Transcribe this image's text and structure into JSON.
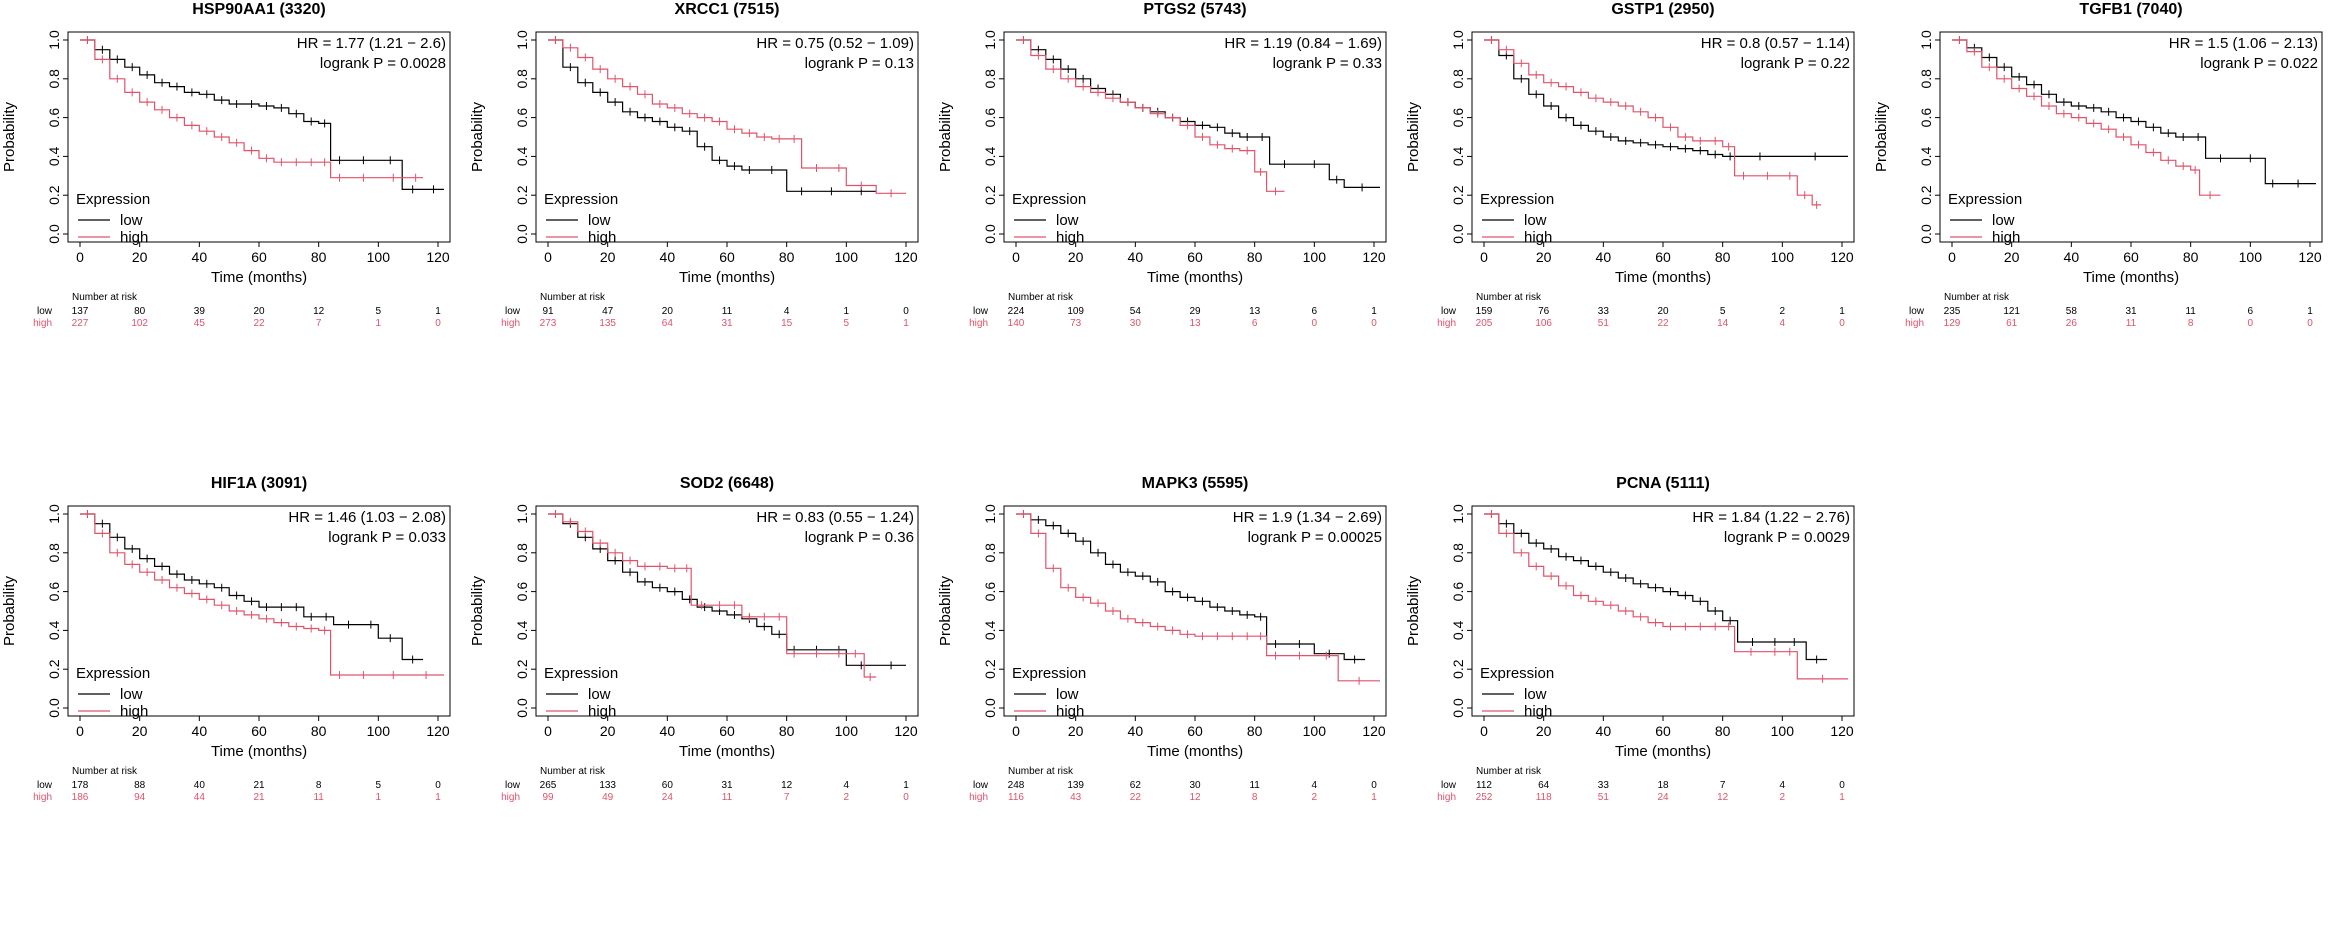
{
  "colors": {
    "low": "#000000",
    "high": "#DF536B",
    "axis": "#000000"
  },
  "shared": {
    "xlabel": "Time (months)",
    "ylabel": "Probability",
    "x_ticks": [
      0,
      20,
      40,
      60,
      80,
      100,
      120
    ],
    "y_ticks": [
      "0.0",
      "0.2",
      "0.4",
      "0.6",
      "0.8",
      "1.0"
    ],
    "legend_title": "Expression",
    "legend_low": "low",
    "legend_high": "high",
    "risk_label": "Number at risk",
    "risk_row_low": "low",
    "risk_row_high": "high",
    "risk_times": [
      0,
      20,
      40,
      60,
      80,
      100,
      120
    ]
  },
  "chart_data": [
    {
      "type": "line",
      "title": "HSP90AA1 (3320)",
      "hr": "HR = 1.77 (1.21 − 2.6)",
      "logrank": "logrank P = 0.0028",
      "xlim": [
        0,
        120
      ],
      "ylim": [
        0,
        1
      ],
      "risk_low": [
        137,
        80,
        39,
        20,
        12,
        5,
        1
      ],
      "risk_high": [
        227,
        102,
        45,
        22,
        7,
        1,
        0
      ],
      "series": [
        {
          "name": "low",
          "x": [
            0,
            5,
            10,
            15,
            20,
            25,
            30,
            35,
            40,
            45,
            50,
            55,
            60,
            65,
            70,
            75,
            80,
            84,
            90,
            100,
            108,
            115,
            122
          ],
          "y": [
            1.0,
            0.95,
            0.9,
            0.86,
            0.82,
            0.78,
            0.76,
            0.73,
            0.72,
            0.69,
            0.67,
            0.67,
            0.66,
            0.65,
            0.62,
            0.58,
            0.57,
            0.38,
            0.38,
            0.38,
            0.23,
            0.23,
            0.23
          ]
        },
        {
          "name": "high",
          "x": [
            0,
            5,
            10,
            15,
            20,
            25,
            30,
            35,
            40,
            45,
            50,
            55,
            60,
            65,
            70,
            75,
            80,
            84,
            90,
            100,
            110,
            115
          ],
          "y": [
            1.0,
            0.9,
            0.8,
            0.73,
            0.68,
            0.64,
            0.6,
            0.56,
            0.53,
            0.5,
            0.47,
            0.43,
            0.39,
            0.37,
            0.37,
            0.37,
            0.37,
            0.29,
            0.29,
            0.29,
            0.29,
            0.29
          ]
        }
      ]
    },
    {
      "type": "line",
      "title": "XRCC1 (7515)",
      "hr": "HR = 0.75 (0.52 − 1.09)",
      "logrank": "logrank P = 0.13",
      "xlim": [
        0,
        120
      ],
      "ylim": [
        0,
        1
      ],
      "risk_low": [
        91,
        47,
        20,
        11,
        4,
        1,
        0
      ],
      "risk_high": [
        273,
        135,
        64,
        31,
        15,
        5,
        1
      ],
      "series": [
        {
          "name": "low",
          "x": [
            0,
            5,
            10,
            15,
            20,
            25,
            30,
            35,
            40,
            45,
            50,
            55,
            60,
            65,
            70,
            80,
            90,
            100,
            110
          ],
          "y": [
            1.0,
            0.86,
            0.78,
            0.73,
            0.68,
            0.63,
            0.6,
            0.58,
            0.55,
            0.53,
            0.45,
            0.38,
            0.35,
            0.33,
            0.33,
            0.22,
            0.22,
            0.22,
            0.22
          ]
        },
        {
          "name": "high",
          "x": [
            0,
            5,
            10,
            15,
            20,
            25,
            30,
            35,
            40,
            45,
            50,
            55,
            60,
            65,
            70,
            75,
            80,
            85,
            95,
            100,
            110,
            120
          ],
          "y": [
            1.0,
            0.96,
            0.91,
            0.85,
            0.8,
            0.76,
            0.72,
            0.67,
            0.65,
            0.62,
            0.6,
            0.58,
            0.54,
            0.52,
            0.5,
            0.49,
            0.49,
            0.34,
            0.34,
            0.25,
            0.21,
            0.21
          ]
        }
      ]
    },
    {
      "type": "line",
      "title": "PTGS2 (5743)",
      "hr": "HR = 1.19 (0.84 − 1.69)",
      "logrank": "logrank P = 0.33",
      "xlim": [
        0,
        120
      ],
      "ylim": [
        0,
        1
      ],
      "risk_low": [
        224,
        109,
        54,
        29,
        13,
        6,
        1
      ],
      "risk_high": [
        140,
        73,
        30,
        13,
        6,
        0,
        0
      ],
      "series": [
        {
          "name": "low",
          "x": [
            0,
            5,
            10,
            15,
            20,
            25,
            30,
            35,
            40,
            45,
            50,
            55,
            60,
            65,
            70,
            75,
            80,
            85,
            95,
            105,
            110,
            122
          ],
          "y": [
            1.0,
            0.95,
            0.9,
            0.85,
            0.8,
            0.75,
            0.72,
            0.68,
            0.65,
            0.63,
            0.6,
            0.58,
            0.56,
            0.55,
            0.52,
            0.5,
            0.5,
            0.36,
            0.36,
            0.28,
            0.24,
            0.24
          ]
        },
        {
          "name": "high",
          "x": [
            0,
            5,
            10,
            15,
            20,
            25,
            30,
            35,
            40,
            45,
            50,
            55,
            60,
            65,
            70,
            75,
            80,
            84,
            90
          ],
          "y": [
            1.0,
            0.92,
            0.85,
            0.8,
            0.76,
            0.73,
            0.7,
            0.68,
            0.65,
            0.62,
            0.6,
            0.56,
            0.5,
            0.46,
            0.44,
            0.43,
            0.32,
            0.22,
            0.22
          ]
        }
      ]
    },
    {
      "type": "line",
      "title": "GSTP1 (2950)",
      "hr": "HR = 0.8 (0.57 − 1.14)",
      "logrank": "logrank P = 0.22",
      "xlim": [
        0,
        120
      ],
      "ylim": [
        0,
        1
      ],
      "risk_low": [
        159,
        76,
        33,
        20,
        5,
        2,
        1
      ],
      "risk_high": [
        205,
        106,
        51,
        22,
        14,
        4,
        0
      ],
      "series": [
        {
          "name": "low",
          "x": [
            0,
            5,
            10,
            15,
            20,
            25,
            30,
            35,
            40,
            45,
            50,
            55,
            60,
            65,
            70,
            75,
            80,
            85,
            100,
            122
          ],
          "y": [
            1.0,
            0.92,
            0.8,
            0.72,
            0.66,
            0.6,
            0.56,
            0.53,
            0.5,
            0.48,
            0.47,
            0.46,
            0.45,
            0.44,
            0.43,
            0.41,
            0.4,
            0.4,
            0.4,
            0.4
          ]
        },
        {
          "name": "high",
          "x": [
            0,
            5,
            10,
            15,
            20,
            25,
            30,
            35,
            40,
            45,
            50,
            55,
            60,
            65,
            70,
            75,
            80,
            84,
            90,
            100,
            105,
            110,
            113
          ],
          "y": [
            1.0,
            0.95,
            0.88,
            0.82,
            0.78,
            0.76,
            0.73,
            0.7,
            0.68,
            0.66,
            0.63,
            0.6,
            0.55,
            0.5,
            0.48,
            0.48,
            0.45,
            0.3,
            0.3,
            0.3,
            0.2,
            0.15,
            0.15
          ]
        }
      ]
    },
    {
      "type": "line",
      "title": "TGFB1 (7040)",
      "hr": "HR = 1.5 (1.06 − 2.13)",
      "logrank": "logrank P = 0.022",
      "xlim": [
        0,
        120
      ],
      "ylim": [
        0,
        1
      ],
      "risk_low": [
        235,
        121,
        58,
        31,
        11,
        6,
        1
      ],
      "risk_high": [
        129,
        61,
        26,
        11,
        8,
        0,
        0
      ],
      "series": [
        {
          "name": "low",
          "x": [
            0,
            5,
            10,
            15,
            20,
            25,
            30,
            35,
            40,
            45,
            50,
            55,
            60,
            65,
            70,
            75,
            80,
            85,
            95,
            105,
            110,
            122
          ],
          "y": [
            1.0,
            0.96,
            0.91,
            0.86,
            0.81,
            0.77,
            0.72,
            0.68,
            0.66,
            0.65,
            0.63,
            0.6,
            0.58,
            0.55,
            0.52,
            0.5,
            0.5,
            0.39,
            0.39,
            0.26,
            0.26,
            0.26
          ]
        },
        {
          "name": "high",
          "x": [
            0,
            5,
            10,
            15,
            20,
            25,
            30,
            35,
            40,
            45,
            50,
            55,
            60,
            65,
            70,
            75,
            80,
            83,
            90
          ],
          "y": [
            1.0,
            0.94,
            0.86,
            0.8,
            0.75,
            0.71,
            0.66,
            0.62,
            0.6,
            0.57,
            0.54,
            0.5,
            0.46,
            0.42,
            0.38,
            0.35,
            0.33,
            0.2,
            0.2
          ]
        }
      ]
    },
    {
      "type": "line",
      "title": "HIF1A (3091)",
      "hr": "HR = 1.46 (1.03 − 2.08)",
      "logrank": "logrank P = 0.033",
      "xlim": [
        0,
        120
      ],
      "ylim": [
        0,
        1
      ],
      "risk_low": [
        178,
        88,
        40,
        21,
        8,
        5,
        0
      ],
      "risk_high": [
        186,
        94,
        44,
        21,
        11,
        1,
        1
      ],
      "series": [
        {
          "name": "low",
          "x": [
            0,
            5,
            10,
            15,
            20,
            25,
            30,
            35,
            40,
            45,
            50,
            55,
            60,
            65,
            70,
            75,
            80,
            85,
            95,
            100,
            108,
            115
          ],
          "y": [
            1.0,
            0.95,
            0.88,
            0.82,
            0.77,
            0.73,
            0.69,
            0.66,
            0.64,
            0.62,
            0.58,
            0.55,
            0.52,
            0.52,
            0.52,
            0.47,
            0.47,
            0.43,
            0.43,
            0.36,
            0.25,
            0.25
          ]
        },
        {
          "name": "high",
          "x": [
            0,
            5,
            10,
            15,
            20,
            25,
            30,
            35,
            40,
            45,
            50,
            55,
            60,
            65,
            70,
            75,
            80,
            84,
            90,
            100,
            110,
            122
          ],
          "y": [
            1.0,
            0.9,
            0.8,
            0.74,
            0.7,
            0.66,
            0.62,
            0.59,
            0.56,
            0.53,
            0.5,
            0.48,
            0.46,
            0.44,
            0.42,
            0.41,
            0.4,
            0.17,
            0.17,
            0.17,
            0.17,
            0.17
          ]
        }
      ]
    },
    {
      "type": "line",
      "title": "SOD2 (6648)",
      "hr": "HR = 0.83 (0.55 − 1.24)",
      "logrank": "logrank P = 0.36",
      "xlim": [
        0,
        120
      ],
      "ylim": [
        0,
        1
      ],
      "risk_low": [
        265,
        133,
        60,
        31,
        12,
        4,
        1
      ],
      "risk_high": [
        99,
        49,
        24,
        11,
        7,
        2,
        0
      ],
      "series": [
        {
          "name": "low",
          "x": [
            0,
            5,
            10,
            15,
            20,
            25,
            30,
            35,
            40,
            45,
            50,
            55,
            60,
            65,
            70,
            75,
            80,
            85,
            95,
            100,
            110,
            120
          ],
          "y": [
            1.0,
            0.95,
            0.88,
            0.82,
            0.76,
            0.7,
            0.65,
            0.62,
            0.6,
            0.56,
            0.52,
            0.5,
            0.48,
            0.46,
            0.42,
            0.38,
            0.3,
            0.3,
            0.3,
            0.22,
            0.22,
            0.22
          ]
        },
        {
          "name": "high",
          "x": [
            0,
            5,
            10,
            15,
            20,
            25,
            30,
            35,
            40,
            45,
            48,
            55,
            60,
            65,
            70,
            75,
            80,
            85,
            95,
            100,
            106,
            110
          ],
          "y": [
            1.0,
            0.96,
            0.91,
            0.85,
            0.8,
            0.76,
            0.73,
            0.73,
            0.72,
            0.72,
            0.53,
            0.53,
            0.53,
            0.47,
            0.47,
            0.47,
            0.28,
            0.28,
            0.28,
            0.28,
            0.16,
            0.16
          ]
        }
      ]
    },
    {
      "type": "line",
      "title": "MAPK3 (5595)",
      "hr": "HR = 1.9 (1.34 − 2.69)",
      "logrank": "logrank P = 0.00025",
      "xlim": [
        0,
        120
      ],
      "ylim": [
        0,
        1
      ],
      "risk_low": [
        248,
        139,
        62,
        30,
        11,
        4,
        0
      ],
      "risk_high": [
        116,
        43,
        22,
        12,
        8,
        2,
        1
      ],
      "series": [
        {
          "name": "low",
          "x": [
            0,
            5,
            10,
            15,
            20,
            25,
            30,
            35,
            40,
            45,
            50,
            55,
            60,
            65,
            70,
            75,
            80,
            84,
            90,
            100,
            110,
            117
          ],
          "y": [
            1.0,
            0.97,
            0.94,
            0.9,
            0.86,
            0.8,
            0.74,
            0.7,
            0.68,
            0.65,
            0.6,
            0.57,
            0.55,
            0.52,
            0.5,
            0.48,
            0.47,
            0.33,
            0.33,
            0.28,
            0.25,
            0.25
          ]
        },
        {
          "name": "high",
          "x": [
            0,
            5,
            10,
            15,
            20,
            25,
            30,
            35,
            40,
            45,
            50,
            55,
            60,
            65,
            70,
            75,
            80,
            84,
            90,
            100,
            108,
            122
          ],
          "y": [
            1.0,
            0.9,
            0.72,
            0.62,
            0.57,
            0.54,
            0.5,
            0.46,
            0.44,
            0.42,
            0.4,
            0.38,
            0.37,
            0.37,
            0.37,
            0.37,
            0.37,
            0.27,
            0.27,
            0.27,
            0.14,
            0.14
          ]
        }
      ]
    },
    {
      "type": "line",
      "title": "PCNA (5111)",
      "hr": "HR = 1.84 (1.22 − 2.76)",
      "logrank": "logrank P = 0.0029",
      "xlim": [
        0,
        120
      ],
      "ylim": [
        0,
        1
      ],
      "risk_low": [
        112,
        64,
        33,
        18,
        7,
        4,
        0
      ],
      "risk_high": [
        252,
        118,
        51,
        24,
        12,
        2,
        1
      ],
      "series": [
        {
          "name": "low",
          "x": [
            0,
            5,
            10,
            15,
            20,
            25,
            30,
            35,
            40,
            45,
            50,
            55,
            60,
            65,
            70,
            75,
            80,
            85,
            95,
            100,
            108,
            115
          ],
          "y": [
            1.0,
            0.95,
            0.9,
            0.85,
            0.82,
            0.78,
            0.76,
            0.73,
            0.7,
            0.67,
            0.64,
            0.62,
            0.6,
            0.58,
            0.55,
            0.5,
            0.45,
            0.34,
            0.34,
            0.34,
            0.25,
            0.25
          ]
        },
        {
          "name": "high",
          "x": [
            0,
            5,
            10,
            15,
            20,
            25,
            30,
            35,
            40,
            45,
            50,
            55,
            60,
            65,
            70,
            75,
            80,
            84,
            95,
            100,
            105,
            122
          ],
          "y": [
            1.0,
            0.9,
            0.8,
            0.73,
            0.68,
            0.63,
            0.58,
            0.55,
            0.53,
            0.5,
            0.47,
            0.44,
            0.42,
            0.42,
            0.42,
            0.42,
            0.42,
            0.29,
            0.29,
            0.29,
            0.15,
            0.15
          ]
        }
      ]
    }
  ]
}
